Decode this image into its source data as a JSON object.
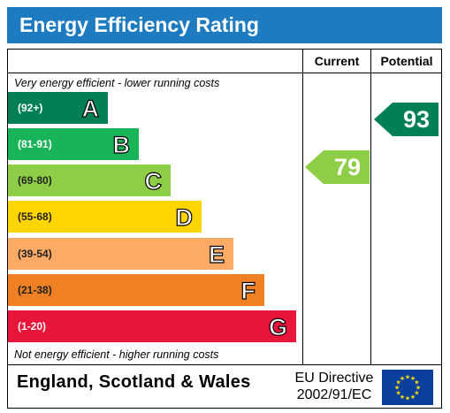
{
  "title": "Energy Efficiency Rating",
  "columns": {
    "current": "Current",
    "potential": "Potential"
  },
  "captions": {
    "top": "Very energy efficient - lower running costs",
    "bottom": "Not energy efficient - higher running costs"
  },
  "colors": {
    "header": "#1d7bc1",
    "A": "#008054",
    "B": "#19b459",
    "C": "#8dce46",
    "D": "#ffd500",
    "E": "#fcaa65",
    "F": "#ef8023",
    "G": "#e9153b",
    "current_arrow": "#8dce46",
    "potential_arrow": "#008054"
  },
  "footer": {
    "country": "England, Scotland & Wales",
    "directive_line1": "EU Directive",
    "directive_line2": "2002/91/EC"
  },
  "chart_data": {
    "type": "bar",
    "categories": [
      "A",
      "B",
      "C",
      "D",
      "E",
      "F",
      "G"
    ],
    "ranges": [
      "(92+)",
      "(81-91)",
      "(69-80)",
      "(55-68)",
      "(39-54)",
      "(21-38)",
      "(1-20)"
    ],
    "title": "Energy Efficiency Rating",
    "current": {
      "value": 79,
      "band": "C"
    },
    "potential": {
      "value": 93,
      "band": "A"
    }
  }
}
